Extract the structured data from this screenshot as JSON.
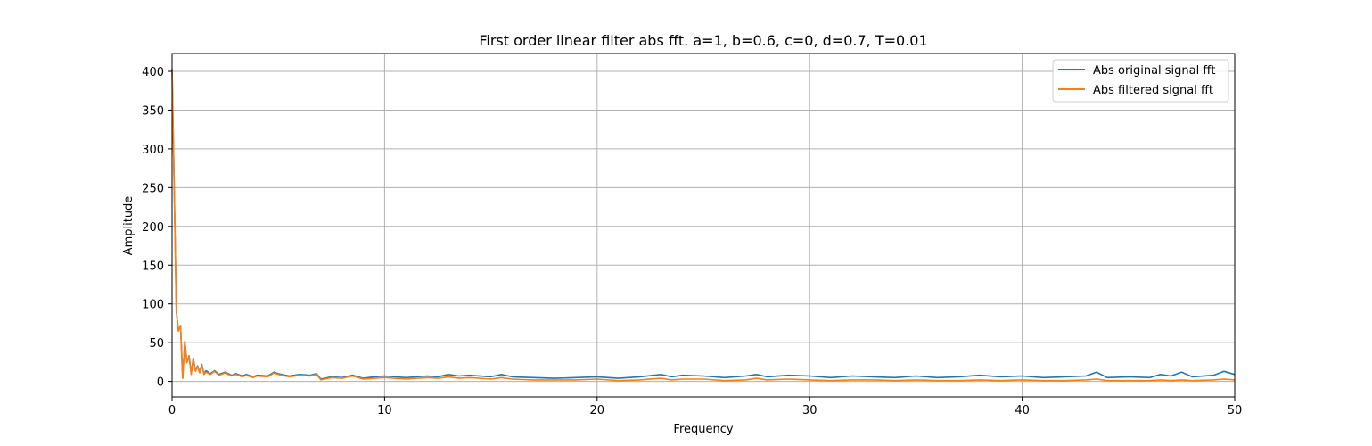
{
  "chart_data": {
    "type": "line",
    "title": "First order linear filter abs fft. a=1, b=0.6, c=0, d=0.7, T=0.01",
    "xlabel": "Frequency",
    "ylabel": "Amplitude",
    "xlim": [
      0,
      50
    ],
    "ylim": [
      -20,
      423
    ],
    "xticks": [
      0,
      10,
      20,
      30,
      40,
      50
    ],
    "yticks": [
      0,
      50,
      100,
      150,
      200,
      250,
      300,
      350,
      400
    ],
    "grid": true,
    "legend_position": "top-right",
    "series": [
      {
        "name": "Abs original signal fft",
        "color": "#1f77b4",
        "x": [
          0,
          0.1,
          0.2,
          0.3,
          0.4,
          0.5,
          0.6,
          0.7,
          0.8,
          0.9,
          1.0,
          1.1,
          1.2,
          1.3,
          1.4,
          1.5,
          1.6,
          1.8,
          2.0,
          2.2,
          2.5,
          2.8,
          3.0,
          3.3,
          3.5,
          3.8,
          4.0,
          4.5,
          4.8,
          5.0,
          5.5,
          6.0,
          6.5,
          6.8,
          7.0,
          7.5,
          8.0,
          8.5,
          9.0,
          9.5,
          10.0,
          11.0,
          12.0,
          12.5,
          13.0,
          13.5,
          14.0,
          15.0,
          15.5,
          16.0,
          17.0,
          18.0,
          19.0,
          20.0,
          21.0,
          22.0,
          23.0,
          23.5,
          24.0,
          25.0,
          26.0,
          27.0,
          27.5,
          28.0,
          29.0,
          30.0,
          31.0,
          32.0,
          33.0,
          34.0,
          35.0,
          36.0,
          37.0,
          38.0,
          39.0,
          40.0,
          41.0,
          42.0,
          43.0,
          43.5,
          44.0,
          45.0,
          46.0,
          46.5,
          47.0,
          47.5,
          48.0,
          49.0,
          49.5,
          50.0
        ],
        "y": [
          403,
          250,
          90,
          65,
          72,
          4,
          52,
          25,
          33,
          10,
          30,
          14,
          20,
          12,
          22,
          10,
          14,
          10,
          14,
          9,
          12,
          8,
          10,
          7,
          9,
          6,
          8,
          7,
          12,
          10,
          7,
          9,
          8,
          10,
          3,
          6,
          5,
          8,
          4,
          6,
          7,
          5,
          7,
          6,
          9,
          7,
          8,
          6,
          9,
          6,
          5,
          4,
          5,
          6,
          4,
          6,
          9,
          6,
          8,
          7,
          5,
          7,
          9,
          6,
          8,
          7,
          5,
          7,
          6,
          5,
          7,
          5,
          6,
          8,
          6,
          7,
          5,
          6,
          7,
          12,
          5,
          6,
          5,
          9,
          7,
          12,
          6,
          8,
          13,
          9
        ]
      },
      {
        "name": "Abs filtered signal fft",
        "color": "#ff7f0e",
        "x": [
          0,
          0.1,
          0.2,
          0.3,
          0.4,
          0.5,
          0.6,
          0.7,
          0.8,
          0.9,
          1.0,
          1.1,
          1.2,
          1.3,
          1.4,
          1.5,
          1.6,
          1.8,
          2.0,
          2.2,
          2.5,
          2.8,
          3.0,
          3.3,
          3.5,
          3.8,
          4.0,
          4.5,
          4.8,
          5.0,
          5.5,
          6.0,
          6.5,
          6.8,
          7.0,
          7.5,
          8.0,
          8.5,
          9.0,
          9.5,
          10.0,
          11.0,
          12.0,
          12.5,
          13.0,
          13.5,
          14.0,
          15.0,
          15.5,
          16.0,
          17.0,
          18.0,
          19.0,
          20.0,
          21.0,
          22.0,
          23.0,
          23.5,
          24.0,
          25.0,
          26.0,
          27.0,
          27.5,
          28.0,
          29.0,
          30.0,
          31.0,
          32.0,
          33.0,
          34.0,
          35.0,
          36.0,
          37.0,
          38.0,
          39.0,
          40.0,
          41.0,
          42.0,
          43.0,
          43.5,
          44.0,
          45.0,
          46.0,
          46.5,
          47.0,
          47.5,
          48.0,
          49.0,
          49.5,
          50.0
        ],
        "y": [
          403,
          250,
          90,
          65,
          72,
          4,
          52,
          24,
          32,
          9,
          29,
          13,
          19,
          11,
          21,
          9,
          12,
          9,
          13,
          8,
          11,
          7,
          9,
          6,
          8,
          5,
          7,
          6,
          11,
          9,
          6,
          8,
          7,
          9,
          2,
          5,
          4,
          7,
          3,
          4,
          5,
          3,
          5,
          4,
          6,
          4,
          5,
          3,
          5,
          3,
          2,
          2,
          2,
          3,
          1,
          2,
          4,
          2,
          3,
          3,
          1,
          2,
          4,
          2,
          3,
          2,
          1,
          2,
          2,
          1,
          2,
          1,
          1,
          2,
          1,
          2,
          1,
          1,
          2,
          3,
          1,
          1,
          1,
          2,
          1,
          2,
          1,
          2,
          3,
          2
        ]
      }
    ]
  }
}
